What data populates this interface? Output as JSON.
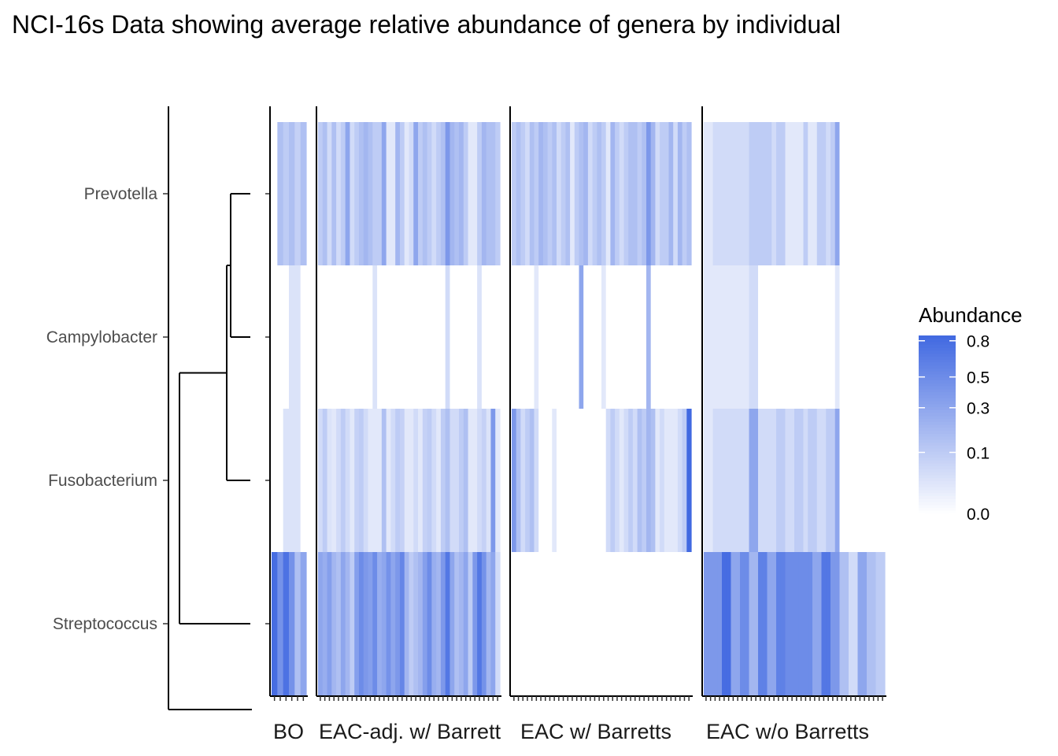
{
  "chart_data": {
    "type": "heatmap",
    "title": "NCI-16s Data showing average relative abundance of genera by individual",
    "rows": [
      "Prevotella",
      "Campylobacter",
      "Fusobacterium",
      "Streptococcus"
    ],
    "dendrogram_order": [
      [
        "Prevotella",
        "Campylobacter"
      ],
      "Fusobacterium",
      "Streptococcus"
    ],
    "facets": [
      {
        "label": "BO",
        "values": {
          "Prevotella": [
            0.0,
            0.15,
            0.1,
            0.15,
            0.08,
            0.15
          ],
          "Campylobacter": [
            0.0,
            0.0,
            0.0,
            0.03,
            0.03,
            0.0
          ],
          "Fusobacterium": [
            0.0,
            0.0,
            0.03,
            0.03,
            0.03,
            0.0
          ],
          "Streptococcus": [
            0.8,
            0.45,
            0.75,
            0.45,
            0.15,
            0.3
          ]
        }
      },
      {
        "label": "EAC-adj. w/ Barrett",
        "values": {
          "Prevotella": [
            0.1,
            0.15,
            0.05,
            0.15,
            0.05,
            0.1,
            0.3,
            0.05,
            0.1,
            0.15,
            0.2,
            0.15,
            0.1,
            0.1,
            0.3,
            0.02,
            0.02,
            0.2,
            0.1,
            0.02,
            0.05,
            0.3,
            0.1,
            0.15,
            0.1,
            0.05,
            0.1,
            0.15,
            0.4,
            0.2,
            0.15,
            0.2,
            0.1,
            0.02,
            0.02,
            0.1,
            0.2,
            0.15,
            0.15,
            0.1
          ],
          "Campylobacter": [
            0.0,
            0.0,
            0.0,
            0.0,
            0.0,
            0.0,
            0.0,
            0.0,
            0.0,
            0.0,
            0.0,
            0.0,
            0.03,
            0.0,
            0.0,
            0.0,
            0.0,
            0.0,
            0.0,
            0.0,
            0.0,
            0.0,
            0.0,
            0.0,
            0.0,
            0.0,
            0.0,
            0.0,
            0.05,
            0.0,
            0.0,
            0.0,
            0.0,
            0.0,
            0.0,
            0.03,
            0.0,
            0.0,
            0.0,
            0.0
          ],
          "Fusobacterium": [
            0.05,
            0.1,
            0.03,
            0.02,
            0.05,
            0.1,
            0.05,
            0.02,
            0.08,
            0.1,
            0.05,
            0.02,
            0.02,
            0.02,
            0.15,
            0.02,
            0.05,
            0.1,
            0.08,
            0.02,
            0.02,
            0.05,
            0.02,
            0.08,
            0.1,
            0.05,
            0.02,
            0.1,
            0.15,
            0.05,
            0.05,
            0.1,
            0.15,
            0.02,
            0.02,
            0.05,
            0.08,
            0.03,
            0.4,
            0.02
          ],
          "Streptococcus": [
            0.3,
            0.25,
            0.35,
            0.2,
            0.15,
            0.3,
            0.2,
            0.1,
            0.35,
            0.5,
            0.4,
            0.35,
            0.5,
            0.25,
            0.3,
            0.45,
            0.3,
            0.4,
            0.55,
            0.2,
            0.1,
            0.15,
            0.2,
            0.35,
            0.5,
            0.25,
            0.2,
            0.4,
            0.7,
            0.3,
            0.15,
            0.2,
            0.3,
            0.1,
            0.4,
            0.7,
            0.45,
            0.2,
            0.3,
            0.05
          ]
        }
      },
      {
        "label": "EAC w/ Barretts",
        "values": {
          "Prevotella": [
            0.1,
            0.15,
            0.1,
            0.05,
            0.15,
            0.1,
            0.2,
            0.15,
            0.1,
            0.15,
            0.05,
            0.1,
            0.15,
            0.02,
            0.1,
            0.15,
            0.2,
            0.05,
            0.1,
            0.15,
            0.1,
            0.02,
            0.2,
            0.1,
            0.05,
            0.1,
            0.15,
            0.15,
            0.1,
            0.15,
            0.4,
            0.2,
            0.05,
            0.1,
            0.1,
            0.2,
            0.05,
            0.2,
            0.1,
            0.15
          ],
          "Campylobacter": [
            0.0,
            0.0,
            0.0,
            0.0,
            0.0,
            0.02,
            0.0,
            0.0,
            0.0,
            0.0,
            0.0,
            0.0,
            0.0,
            0.0,
            0.0,
            0.3,
            0.0,
            0.0,
            0.0,
            0.0,
            0.02,
            0.0,
            0.0,
            0.0,
            0.0,
            0.0,
            0.0,
            0.0,
            0.0,
            0.0,
            0.2,
            0.0,
            0.0,
            0.0,
            0.0,
            0.0,
            0.0,
            0.0,
            0.0,
            0.0
          ],
          "Fusobacterium": [
            0.4,
            0.15,
            0.05,
            0.1,
            0.15,
            0.05,
            0.0,
            0.0,
            0.0,
            0.02,
            0.0,
            0.0,
            0.0,
            0.0,
            0.0,
            0.0,
            0.0,
            0.0,
            0.0,
            0.0,
            0.0,
            0.05,
            0.1,
            0.05,
            0.02,
            0.05,
            0.1,
            0.05,
            0.15,
            0.1,
            0.2,
            0.15,
            0.02,
            0.05,
            0.02,
            0.02,
            0.02,
            0.05,
            0.1,
            0.85
          ]
        }
      },
      {
        "label": "EAC w/o Barretts",
        "values": {
          "Prevotella": [
            0.02,
            0.02,
            0.05,
            0.05,
            0.05,
            0.05,
            0.05,
            0.05,
            0.05,
            0.05,
            0.1,
            0.1,
            0.1,
            0.1,
            0.1,
            0.05,
            0.1,
            0.1,
            0.02,
            0.02,
            0.02,
            0.02,
            0.1,
            0.02,
            0.02,
            0.1,
            0.1,
            0.05,
            0.1,
            0.3,
            0.0,
            0.0,
            0.0,
            0.0,
            0.0,
            0.0,
            0.0,
            0.0,
            0.0,
            0.0
          ],
          "Campylobacter": [
            0.02,
            0.02,
            0.02,
            0.02,
            0.02,
            0.02,
            0.02,
            0.02,
            0.02,
            0.02,
            0.05,
            0.05,
            0.0,
            0.0,
            0.0,
            0.0,
            0.0,
            0.0,
            0.0,
            0.0,
            0.0,
            0.0,
            0.0,
            0.0,
            0.0,
            0.0,
            0.0,
            0.0,
            0.0,
            0.02,
            0.0,
            0.0,
            0.0,
            0.0,
            0.0,
            0.0,
            0.0,
            0.0,
            0.0,
            0.0
          ],
          "Fusobacterium": [
            0.02,
            0.02,
            0.05,
            0.05,
            0.05,
            0.05,
            0.05,
            0.05,
            0.05,
            0.05,
            0.3,
            0.3,
            0.05,
            0.05,
            0.05,
            0.05,
            0.1,
            0.1,
            0.05,
            0.05,
            0.1,
            0.1,
            0.05,
            0.1,
            0.1,
            0.05,
            0.05,
            0.1,
            0.1,
            0.3,
            0.0,
            0.0,
            0.0,
            0.0,
            0.0,
            0.0,
            0.0,
            0.0,
            0.0,
            0.0
          ],
          "Streptococcus": [
            0.4,
            0.4,
            0.4,
            0.4,
            0.8,
            0.8,
            0.3,
            0.3,
            0.5,
            0.5,
            0.2,
            0.2,
            0.6,
            0.6,
            0.3,
            0.3,
            0.6,
            0.6,
            0.5,
            0.5,
            0.5,
            0.5,
            0.5,
            0.5,
            0.3,
            0.3,
            0.7,
            0.7,
            0.4,
            0.4,
            0.15,
            0.15,
            0.05,
            0.05,
            0.3,
            0.3,
            0.15,
            0.15,
            0.1,
            0.1
          ]
        }
      }
    ],
    "legend": {
      "title": "Abundance",
      "position": "right",
      "ticks": [
        0.0,
        0.1,
        0.3,
        0.5,
        0.8
      ],
      "tick_labels": [
        "0.0",
        "0.1",
        "0.3",
        "0.5",
        "0.8"
      ],
      "scale": "sqrt",
      "range": [
        0,
        0.85
      ],
      "low_color": "#ffffff",
      "high_color": "#4169e1"
    }
  }
}
